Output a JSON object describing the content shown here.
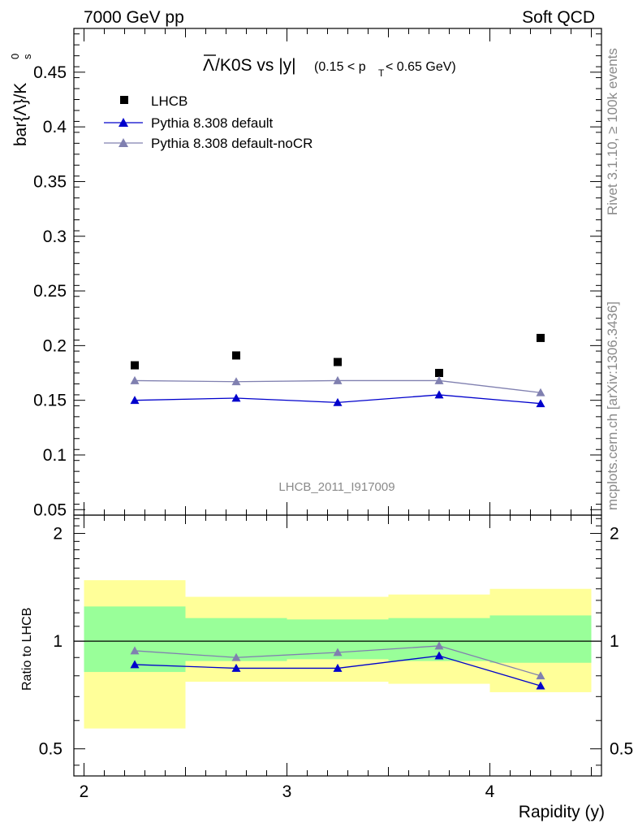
{
  "header": {
    "left": "7000 GeV pp",
    "right": "Soft QCD"
  },
  "side": {
    "rivet": "Rivet 3.1.10, ≥ 100k events",
    "mcplots": "mcplots.cern.ch [arXiv:1306.3436]"
  },
  "chart_data": [
    {
      "type": "scatter",
      "title_parts": {
        "bar": "Λ",
        "main": "/K0S vs |y|",
        "range_open": "(0.15 < p",
        "sub": "T",
        "range_close": " < 0.65 GeV)"
      },
      "ylabel": "bar{Λ}/K",
      "ylabel_sub": "s",
      "ylabel_sup": "0",
      "analysis_id": "LHCB_2011_I917009",
      "ylim": [
        0.045,
        0.49
      ],
      "yticks": [
        0.05,
        0.1,
        0.15,
        0.2,
        0.25,
        0.3,
        0.35,
        0.4,
        0.45
      ],
      "ytick_labels": [
        "0.05",
        "0.1",
        "0.15",
        "0.2",
        "0.25",
        "0.3",
        "0.35",
        "0.4",
        "0.45"
      ],
      "xlim": [
        1.95,
        4.55
      ],
      "legend_position": "top-left",
      "series": [
        {
          "name": "LHCB",
          "marker": "square",
          "color": "#000000",
          "x": [
            2.25,
            2.75,
            3.25,
            3.75,
            4.25
          ],
          "y": [
            0.182,
            0.191,
            0.185,
            0.175,
            0.207
          ]
        },
        {
          "name": "Pythia 8.308 default",
          "marker": "triangle",
          "color": "#0000cc",
          "x": [
            2.25,
            2.75,
            3.25,
            3.75,
            4.25
          ],
          "y": [
            0.15,
            0.152,
            0.148,
            0.155,
            0.147
          ],
          "yerr": [
            0.003,
            0.003,
            0.003,
            0.003,
            0.003
          ]
        },
        {
          "name": "Pythia 8.308 default-noCR",
          "marker": "triangle",
          "color": "#8080b0",
          "x": [
            2.25,
            2.75,
            3.25,
            3.75,
            4.25
          ],
          "y": [
            0.168,
            0.167,
            0.168,
            0.168,
            0.157
          ],
          "yerr": [
            0.002,
            0.002,
            0.002,
            0.002,
            0.003
          ]
        }
      ]
    },
    {
      "type": "line",
      "ylabel": "Ratio to LHCB",
      "xlabel": "Rapidity (y)",
      "ylim": [
        0.42,
        2.25
      ],
      "yticks": [
        0.5,
        1,
        2
      ],
      "ytick_labels": [
        "0.5",
        "1",
        "2"
      ],
      "xlim": [
        1.95,
        4.55
      ],
      "xticks": [
        2,
        3,
        4
      ],
      "xtick_labels": [
        "2",
        "3",
        "4"
      ],
      "reference_line": 1,
      "bands": [
        {
          "x0": 2.0,
          "x1": 2.5,
          "inner": [
            0.82,
            1.25
          ],
          "outer": [
            0.57,
            1.48
          ]
        },
        {
          "x0": 2.5,
          "x1": 3.0,
          "inner": [
            0.88,
            1.16
          ],
          "outer": [
            0.77,
            1.33
          ]
        },
        {
          "x0": 3.0,
          "x1": 3.5,
          "inner": [
            0.89,
            1.15
          ],
          "outer": [
            0.77,
            1.33
          ]
        },
        {
          "x0": 3.5,
          "x1": 4.0,
          "inner": [
            0.88,
            1.16
          ],
          "outer": [
            0.76,
            1.35
          ]
        },
        {
          "x0": 4.0,
          "x1": 4.5,
          "inner": [
            0.87,
            1.18
          ],
          "outer": [
            0.72,
            1.4
          ]
        }
      ],
      "series": [
        {
          "name": "Pythia 8.308 default",
          "color": "#0000cc",
          "x": [
            2.25,
            2.75,
            3.25,
            3.75,
            4.25
          ],
          "y": [
            0.86,
            0.84,
            0.84,
            0.91,
            0.75
          ]
        },
        {
          "name": "Pythia 8.308 default-noCR",
          "color": "#8080b0",
          "x": [
            2.25,
            2.75,
            3.25,
            3.75,
            4.25
          ],
          "y": [
            0.94,
            0.9,
            0.93,
            0.97,
            0.8
          ]
        }
      ]
    }
  ]
}
